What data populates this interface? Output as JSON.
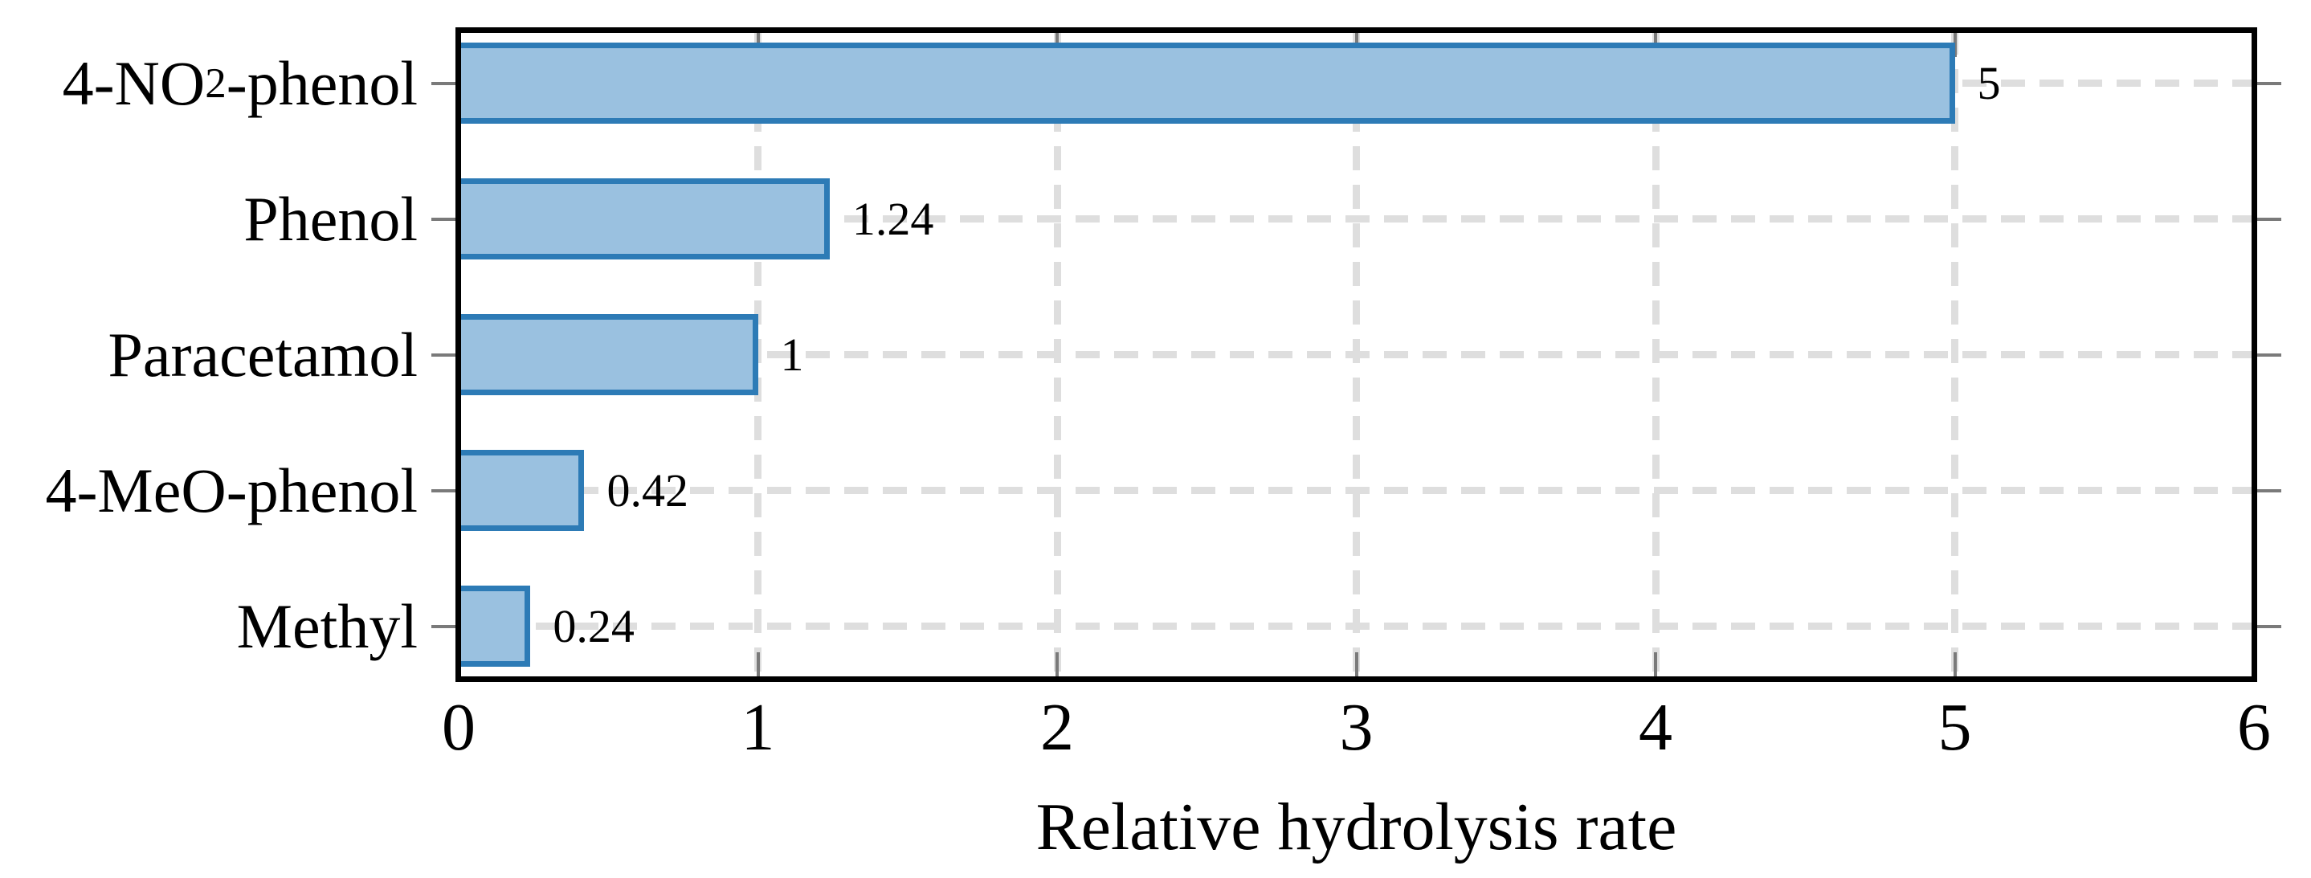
{
  "chart_data": {
    "type": "bar",
    "orientation": "horizontal",
    "title": "",
    "categories": [
      "4-NO₂-phenol",
      "Phenol",
      "Paracetamol",
      "4-MeO-phenol",
      "Methyl"
    ],
    "category_parts": [
      [
        {
          "text": "4-NO"
        },
        {
          "text": "2",
          "subscript": true
        },
        {
          "text": "-phenol"
        }
      ],
      [
        {
          "text": "Phenol"
        }
      ],
      [
        {
          "text": "Paracetamol"
        }
      ],
      [
        {
          "text": "4-MeO-phenol"
        }
      ],
      [
        {
          "text": "Methyl"
        }
      ]
    ],
    "values": [
      5,
      1.24,
      1,
      0.42,
      0.24
    ],
    "value_labels": [
      "5",
      "1.24",
      "1",
      "0.42",
      "0.24"
    ],
    "xlabel": "Relative hydrolysis rate",
    "ylabel": "",
    "xlim": [
      0,
      6
    ],
    "xticks": [
      0,
      1,
      2,
      3,
      4,
      5,
      6
    ],
    "grid": {
      "style": "dashed",
      "vertical_at": [
        1,
        2,
        3,
        4,
        5
      ],
      "horizontal": "at-every-bar-center"
    },
    "legend": null,
    "colors": {
      "bar_fill": "#9ac1e0",
      "bar_border": "#2d7bb6",
      "grid": "#dedede",
      "tick": "#7a7a7a",
      "frame": "#000000",
      "text": "#000000",
      "background": "#ffffff"
    }
  }
}
